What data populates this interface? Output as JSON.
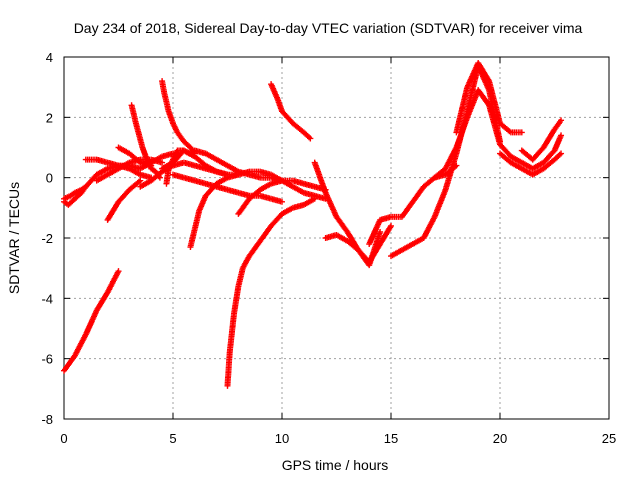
{
  "chart_data": {
    "type": "scatter",
    "title": "Day 234 of 2018, Sidereal Day-to-day VTEC variation (SDTVAR) for receiver vima",
    "xlabel": "GPS time / hours",
    "ylabel": "SDTVAR / TECUs",
    "xlim": [
      0,
      25
    ],
    "ylim": [
      -8,
      4
    ],
    "xticks": [
      0,
      5,
      10,
      15,
      20,
      25
    ],
    "yticks": [
      -8,
      -6,
      -4,
      -2,
      0,
      2,
      4
    ],
    "grid": true,
    "marker": "+",
    "color": "#ff0000",
    "series": [
      {
        "name": "t1",
        "x": [
          0.0,
          0.5,
          1.0,
          1.5,
          2.0,
          2.5
        ],
        "y": [
          -6.4,
          -5.9,
          -5.2,
          -4.4,
          -3.8,
          -3.1
        ]
      },
      {
        "name": "t2",
        "x": [
          0.0,
          0.2,
          0.5,
          0.8,
          1.0,
          1.5,
          2.0,
          2.5,
          3.0,
          3.5,
          4.0,
          4.5,
          5.0
        ],
        "y": [
          -0.8,
          -0.9,
          -0.7,
          -0.5,
          -0.3,
          0.1,
          0.3,
          0.4,
          0.4,
          0.3,
          0.5,
          0.7,
          0.8
        ]
      },
      {
        "name": "t3",
        "x": [
          0.0,
          0.3,
          0.5,
          0.8,
          1.0
        ],
        "y": [
          -0.7,
          -0.6,
          -0.5,
          -0.4,
          -0.3
        ]
      },
      {
        "name": "t4",
        "x": [
          1.0,
          1.5,
          2.0,
          2.5,
          3.0,
          3.5,
          4.0
        ],
        "y": [
          0.6,
          0.6,
          0.5,
          0.4,
          0.3,
          0.1,
          0.0
        ]
      },
      {
        "name": "t5",
        "x": [
          1.5,
          2.0,
          2.5,
          3.0,
          3.5,
          4.0,
          4.5
        ],
        "y": [
          -0.1,
          0.1,
          0.3,
          0.5,
          0.6,
          0.6,
          0.5
        ]
      },
      {
        "name": "t6",
        "x": [
          2.0,
          2.5,
          3.0,
          3.5
        ],
        "y": [
          -1.4,
          -0.8,
          -0.4,
          -0.1
        ]
      },
      {
        "name": "t7",
        "x": [
          2.5,
          3.0,
          3.5,
          4.0
        ],
        "y": [
          1.0,
          0.8,
          0.5,
          0.4
        ]
      },
      {
        "name": "t8",
        "x": [
          3.1,
          3.3,
          3.6,
          3.8,
          4.0,
          4.2,
          4.4
        ],
        "y": [
          2.4,
          1.8,
          1.0,
          0.6,
          0.3,
          0.2,
          0.0
        ]
      },
      {
        "name": "t9",
        "x": [
          3.5,
          4.0,
          4.5,
          5.0,
          5.5,
          6.0,
          6.5,
          7.0,
          7.5
        ],
        "y": [
          -0.3,
          -0.1,
          0.2,
          0.4,
          0.5,
          0.4,
          0.3,
          0.2,
          0.1
        ]
      },
      {
        "name": "t10",
        "x": [
          4.5,
          5.0,
          5.5,
          6.0,
          6.5,
          7.0,
          7.5,
          8.0,
          8.5,
          9.0,
          9.5,
          10.0
        ],
        "y": [
          0.3,
          0.5,
          0.9,
          0.7,
          0.4,
          0.2,
          0.1,
          0.1,
          0.2,
          0.2,
          0.1,
          -0.1
        ]
      },
      {
        "name": "t11",
        "x": [
          4.5,
          4.6,
          4.8,
          5.0,
          5.2,
          5.5,
          5.8,
          6.0
        ],
        "y": [
          3.2,
          2.8,
          2.2,
          1.8,
          1.5,
          1.2,
          1.0,
          0.8
        ]
      },
      {
        "name": "t12",
        "x": [
          4.7,
          4.8,
          5.0,
          5.2,
          5.5,
          6.0
        ],
        "y": [
          -0.2,
          0.3,
          0.6,
          0.9,
          0.9,
          0.7
        ]
      },
      {
        "name": "t13",
        "x": [
          5.0,
          5.5,
          6.0,
          6.5,
          7.0,
          7.5,
          8.0,
          8.5,
          9.0,
          9.5,
          10.0
        ],
        "y": [
          0.1,
          0.0,
          -0.1,
          -0.2,
          -0.3,
          -0.4,
          -0.5,
          -0.6,
          -0.6,
          -0.7,
          -0.8
        ]
      },
      {
        "name": "t14",
        "x": [
          5.8,
          6.0,
          6.2,
          6.5,
          7.0,
          7.5,
          8.0
        ],
        "y": [
          -2.3,
          -1.7,
          -1.1,
          -0.6,
          -0.2,
          0.0,
          0.1
        ]
      },
      {
        "name": "t15",
        "x": [
          6.0,
          6.5,
          7.0,
          7.5,
          8.0,
          8.5,
          9.0,
          9.5,
          10.0,
          10.5,
          11.0,
          11.5,
          12.0
        ],
        "y": [
          0.9,
          0.8,
          0.6,
          0.4,
          0.2,
          0.1,
          0.0,
          0.0,
          -0.1,
          -0.3,
          -0.5,
          -0.6,
          -0.7
        ]
      },
      {
        "name": "t16",
        "x": [
          7.5,
          7.6,
          7.8,
          8.0,
          8.2,
          8.5,
          9.0,
          9.5,
          10.0,
          10.5,
          11.0,
          11.5
        ],
        "y": [
          -6.9,
          -5.8,
          -4.5,
          -3.6,
          -3.0,
          -2.6,
          -2.1,
          -1.6,
          -1.2,
          -1.0,
          -0.9,
          -0.7
        ]
      },
      {
        "name": "t17",
        "x": [
          8.0,
          8.5,
          9.0,
          9.5,
          10.0,
          10.5,
          11.0,
          11.5,
          12.0
        ],
        "y": [
          -1.2,
          -0.7,
          -0.4,
          -0.2,
          -0.1,
          -0.1,
          -0.2,
          -0.3,
          -0.4
        ]
      },
      {
        "name": "t18",
        "x": [
          9.5,
          9.8,
          10.0,
          10.5,
          11.0,
          11.3
        ],
        "y": [
          3.1,
          2.6,
          2.2,
          1.8,
          1.5,
          1.3
        ]
      },
      {
        "name": "t19",
        "x": [
          11.5,
          12.0,
          12.5,
          13.0,
          13.5,
          14.0,
          14.5,
          15.0
        ],
        "y": [
          0.5,
          -0.5,
          -1.3,
          -1.8,
          -2.4,
          -2.8,
          -2.2,
          -1.6
        ]
      },
      {
        "name": "t20",
        "x": [
          12.0,
          12.5,
          13.0,
          13.5,
          14.0,
          14.5
        ],
        "y": [
          -2.0,
          -1.9,
          -2.1,
          -2.4,
          -2.9,
          -1.8
        ]
      },
      {
        "name": "t21",
        "x": [
          14.0,
          14.5,
          15.0,
          15.5,
          16.0,
          16.5,
          17.0,
          17.5,
          18.0
        ],
        "y": [
          -2.2,
          -1.4,
          -1.3,
          -1.3,
          -0.8,
          -0.3,
          0.0,
          0.1,
          0.4
        ]
      },
      {
        "name": "t22",
        "x": [
          15.0,
          15.5,
          16.0,
          16.5,
          17.0,
          17.5,
          18.0,
          18.5,
          19.0,
          19.5,
          20.0
        ],
        "y": [
          -2.6,
          -2.4,
          -2.2,
          -2.0,
          -1.3,
          -0.4,
          0.8,
          2.2,
          3.7,
          2.9,
          1.2
        ]
      },
      {
        "name": "t23",
        "x": [
          17.0,
          17.5,
          18.0,
          18.5,
          19.0,
          19.5,
          20.0,
          20.5,
          21.0,
          21.5,
          22.0,
          22.5,
          22.8
        ],
        "y": [
          0.0,
          0.3,
          1.0,
          2.0,
          2.9,
          2.4,
          1.1,
          0.7,
          0.5,
          0.3,
          0.5,
          0.9,
          1.4
        ]
      },
      {
        "name": "t24",
        "x": [
          18.0,
          18.5,
          19.0,
          19.5,
          20.0,
          20.5,
          21.0
        ],
        "y": [
          1.5,
          3.0,
          3.8,
          3.2,
          1.8,
          1.5,
          1.5
        ]
      },
      {
        "name": "t25",
        "x": [
          20.0,
          20.5,
          21.0,
          21.5,
          22.0,
          22.5,
          22.8
        ],
        "y": [
          0.8,
          0.5,
          0.3,
          0.1,
          0.3,
          0.6,
          0.8
        ]
      },
      {
        "name": "t26",
        "x": [
          21.0,
          21.5,
          22.0,
          22.5,
          22.8
        ],
        "y": [
          0.9,
          0.6,
          1.0,
          1.6,
          1.9
        ]
      }
    ]
  },
  "labels": {
    "title": "Day 234 of 2018, Sidereal Day-to-day VTEC variation (SDTVAR) for receiver vima",
    "xlabel": "GPS time / hours",
    "ylabel": "SDTVAR / TECUs",
    "xticks": [
      "0",
      "5",
      "10",
      "15",
      "20",
      "25"
    ],
    "yticks": [
      "-8",
      "-6",
      "-4",
      "-2",
      "0",
      "2",
      "4"
    ]
  }
}
